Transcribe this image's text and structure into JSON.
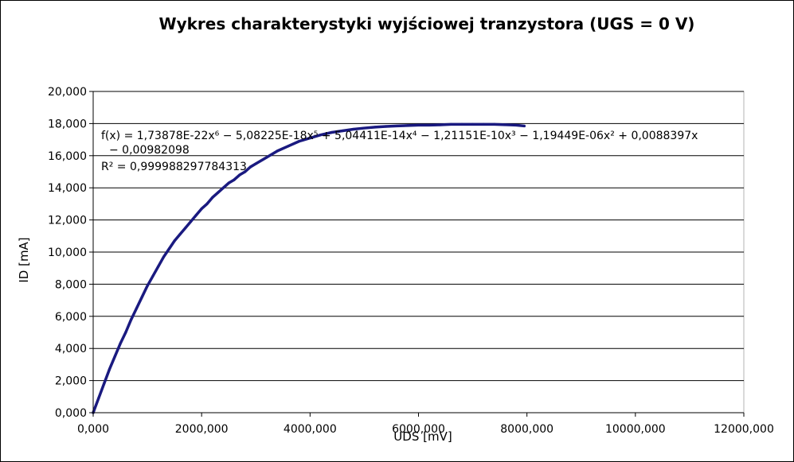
{
  "chart_data": {
    "type": "scatter",
    "title": "Wykres charakterystyki wyjściowej tranzystora (UGS = 0 V)",
    "xlabel": "UDS [mV]",
    "ylabel": "ID [mA]",
    "xlim": [
      0,
      12000
    ],
    "ylim": [
      0,
      20
    ],
    "x_ticks": [
      0,
      2000,
      4000,
      6000,
      8000,
      10000,
      12000
    ],
    "x_tick_labels": [
      "0,000",
      "2000,000",
      "4000,000",
      "6000,000",
      "8000,000",
      "10000,000",
      "12000,000"
    ],
    "y_ticks": [
      0,
      2,
      4,
      6,
      8,
      10,
      12,
      14,
      16,
      18,
      20
    ],
    "y_tick_labels": [
      "0,000",
      "2,000",
      "4,000",
      "6,000",
      "8,000",
      "10,000",
      "12,000",
      "14,000",
      "16,000",
      "18,000",
      "20,000"
    ],
    "grid": "horizontal",
    "legend": "none",
    "series": [
      {
        "color": "#1a1a80",
        "x": [
          0,
          100,
          200,
          300,
          400,
          500,
          600,
          700,
          800,
          900,
          1000,
          1100,
          1200,
          1300,
          1400,
          1500,
          1600,
          1700,
          1800,
          1900,
          2000,
          2100,
          2200,
          2300,
          2400,
          2500,
          2600,
          2700,
          2800,
          2900,
          3000,
          3200,
          3400,
          3600,
          3800,
          4000,
          4200,
          4400,
          4600,
          4800,
          5000,
          5200,
          5400,
          5600,
          5800,
          6000,
          6200,
          6400,
          6600,
          6800,
          7000,
          7200,
          7400,
          7600,
          7800,
          7950
        ],
        "y": [
          0.0,
          0.9,
          1.8,
          2.7,
          3.5,
          4.3,
          5.0,
          5.8,
          6.5,
          7.2,
          7.9,
          8.5,
          9.1,
          9.7,
          10.2,
          10.7,
          11.1,
          11.5,
          11.9,
          12.3,
          12.7,
          13.0,
          13.4,
          13.7,
          14.0,
          14.3,
          14.5,
          14.8,
          15.0,
          15.3,
          15.5,
          15.9,
          16.3,
          16.6,
          16.9,
          17.1,
          17.3,
          17.45,
          17.55,
          17.65,
          17.72,
          17.78,
          17.82,
          17.85,
          17.88,
          17.9,
          17.9,
          17.92,
          17.95,
          17.95,
          17.95,
          17.95,
          17.95,
          17.93,
          17.9,
          17.85
        ]
      }
    ],
    "annotations": [
      "f(x) = 1,73878E-22x⁶ − 5,08225E-18x⁵ + 5,04411E-14x⁴ − 1,21151E-10x³ − 1,19449E-06x² + 0,0088397x",
      "− 0,00982098",
      "R² = 0,999988297784313"
    ]
  }
}
